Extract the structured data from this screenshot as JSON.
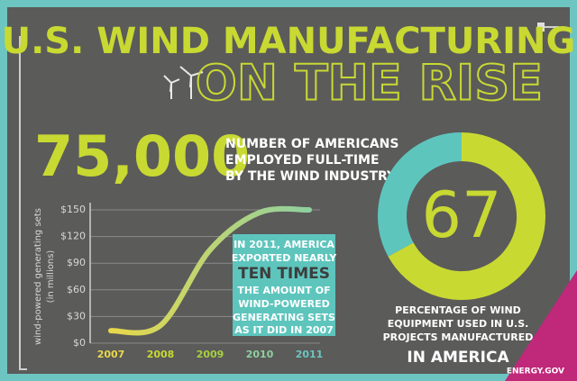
{
  "header": {
    "title": "U.S. WIND MANUFACTURING",
    "subtitle": "ON THE RISE"
  },
  "stat": {
    "value": "75,000",
    "lines": [
      "NUMBER OF AMERICANS",
      "EMPLOYED FULL-TIME",
      "BY THE WIND INDUSTRY"
    ]
  },
  "callout": {
    "lines": [
      "IN 2011, AMERICA",
      "EXPORTED NEARLY",
      "TEN TIMES",
      "THE AMOUNT OF",
      "WIND-POWERED",
      "GENERATING SETS",
      "AS IT DID IN 2007"
    ]
  },
  "chart_data": [
    {
      "type": "line",
      "categories": [
        "2007",
        "2008",
        "2009",
        "2010",
        "2011"
      ],
      "values": [
        14,
        20,
        105,
        147,
        150
      ],
      "color_start": "#e8d84a",
      "color_end": "#8fd0a0",
      "category_colors": [
        "#e8d84a",
        "#c8d932",
        "#a8d040",
        "#8fd0a0",
        "#6cc5c0"
      ],
      "ylim": [
        0,
        150
      ],
      "yticks": [
        {
          "value": 0,
          "label": "$0"
        },
        {
          "value": 30,
          "label": "$30"
        },
        {
          "value": 60,
          "label": "$60"
        },
        {
          "value": 90,
          "label": "$90"
        },
        {
          "value": 120,
          "label": "$120"
        },
        {
          "value": 150,
          "label": "$150"
        }
      ],
      "ylabel": "wind-powered generating sets",
      "ylabel_sub": "(in millions)",
      "grid": true
    },
    {
      "type": "pie",
      "values": [
        67,
        33
      ],
      "colors": [
        "#c8d932",
        "#5ec5bd"
      ],
      "caption": [
        "PERCENTAGE OF WIND",
        "EQUIPMENT USED IN U.S.",
        "PROJECTS MANUFACTURED"
      ],
      "emphasis": "IN AMERICA"
    }
  ],
  "footer": {
    "source": "ENERGY.GOV"
  }
}
